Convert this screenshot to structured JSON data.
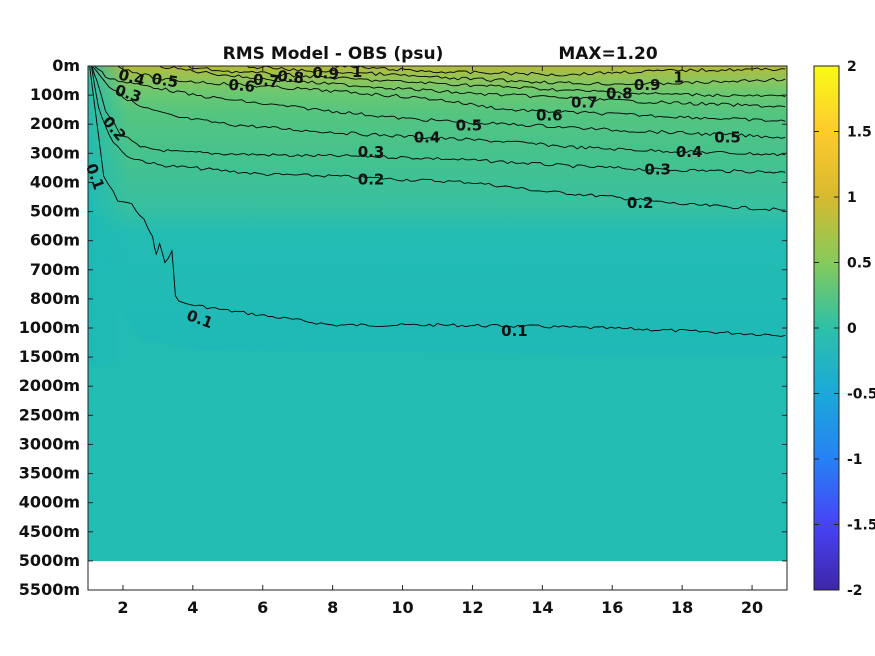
{
  "chart_data": {
    "type": "heatmap",
    "title": "RMS Model - OBS (psu)",
    "subtitle": "MAX=1.20",
    "x_ticks": [
      2,
      4,
      6,
      8,
      10,
      12,
      14,
      16,
      18,
      20
    ],
    "xlim": [
      1,
      21
    ],
    "y_ticks": [
      "0m",
      "100m",
      "200m",
      "300m",
      "400m",
      "500m",
      "600m",
      "700m",
      "800m",
      "1000m",
      "1500m",
      "2000m",
      "2500m",
      "3000m",
      "3500m",
      "4000m",
      "4500m",
      "5000m",
      "5500m"
    ],
    "y_axis_reversed": true,
    "data_extent_bottom": "5000m",
    "colorbar": {
      "range": [
        -2,
        2
      ],
      "ticks": [
        "2",
        "1.5",
        "1",
        "0.5",
        "0",
        "-0.5",
        "-1",
        "-1.5",
        "-2"
      ],
      "colormap": [
        "#3e26a8",
        "#4743f6",
        "#2781f4",
        "#1aa9da",
        "#2dc0a8",
        "#85ca5b",
        "#d7ba2e",
        "#feca2f",
        "#f9fb15"
      ]
    },
    "background_value_deep": 0.05,
    "contours": [
      {
        "level": 0.1,
        "label": "0.1",
        "x": [
          1.05,
          1.2,
          1.45,
          1.85,
          2.25,
          2.6,
          2.85,
          2.95,
          3.05,
          3.2,
          3.4,
          3.5,
          3.7,
          5,
          8,
          11,
          14,
          17,
          20,
          20.95
        ],
        "depth_index": [
          0.0,
          1.5,
          3.8,
          4.6,
          4.75,
          5.3,
          5.9,
          6.5,
          6.1,
          6.8,
          6.3,
          7.9,
          8.15,
          8.4,
          8.9,
          8.9,
          8.95,
          9.05,
          9.2,
          9.25
        ]
      },
      {
        "level": 0.2,
        "label": "0.2",
        "x": [
          1.1,
          1.3,
          1.6,
          2.1,
          3,
          4,
          6,
          8,
          10,
          12,
          14,
          16,
          18,
          20.95
        ],
        "depth_index": [
          0.0,
          1.4,
          2.4,
          3.1,
          3.4,
          3.5,
          3.72,
          3.78,
          3.9,
          4.0,
          4.3,
          4.5,
          4.75,
          4.95
        ]
      },
      {
        "level": 0.3,
        "label": "0.3",
        "x": [
          1.1,
          1.25,
          1.5,
          1.9,
          2.5,
          3.5,
          5,
          7,
          9,
          11,
          13,
          15,
          17,
          20.95
        ],
        "depth_index": [
          0.0,
          0.5,
          1.5,
          2.3,
          2.8,
          2.95,
          3.02,
          3.08,
          3.1,
          3.18,
          3.3,
          3.45,
          3.55,
          3.65
        ]
      },
      {
        "level": 0.4,
        "label": "0.4",
        "x": [
          1.15,
          1.35,
          1.6,
          2.0,
          2.5,
          3.5,
          5,
          7,
          9,
          11,
          13,
          15,
          17,
          20.95
        ],
        "depth_index": [
          0.0,
          0.3,
          0.7,
          1.05,
          1.4,
          1.75,
          2.0,
          2.2,
          2.35,
          2.48,
          2.6,
          2.8,
          2.9,
          3.05
        ]
      },
      {
        "level": 0.5,
        "label": "0.5",
        "x": [
          1.2,
          1.5,
          2.0,
          3.0,
          4,
          6,
          8,
          10,
          12,
          14,
          16,
          18,
          20.95
        ],
        "depth_index": [
          0.0,
          0.35,
          0.55,
          0.75,
          1.0,
          1.3,
          1.55,
          1.8,
          1.95,
          2.05,
          2.2,
          2.3,
          2.45
        ]
      },
      {
        "level": 0.6,
        "label": "0.6",
        "x": [
          1.8,
          3,
          5,
          7,
          9,
          11,
          13,
          15,
          17,
          19,
          20.95
        ],
        "depth_index": [
          0.0,
          0.45,
          0.62,
          0.78,
          0.95,
          1.15,
          1.5,
          1.6,
          1.7,
          1.8,
          1.9
        ]
      },
      {
        "level": 0.7,
        "label": "0.7",
        "x": [
          3.0,
          4.5,
          6,
          8,
          10,
          12,
          14,
          16,
          18,
          20.95
        ],
        "depth_index": [
          0.0,
          0.25,
          0.45,
          0.62,
          0.78,
          0.95,
          1.05,
          1.18,
          1.28,
          1.4
        ]
      },
      {
        "level": 0.8,
        "label": "0.8",
        "x": [
          3.5,
          5,
          7,
          9,
          11,
          13,
          15,
          17,
          19,
          20.95
        ],
        "depth_index": [
          0.0,
          0.18,
          0.33,
          0.48,
          0.6,
          0.72,
          0.85,
          0.95,
          1.0,
          1.05
        ]
      },
      {
        "level": 0.9,
        "label": "0.9",
        "x": [
          5.5,
          7,
          9,
          11,
          13,
          15,
          17,
          19,
          20.95
        ],
        "depth_index": [
          0.0,
          0.15,
          0.25,
          0.4,
          0.5,
          0.6,
          0.62,
          0.55,
          0.45
        ]
      },
      {
        "level": 1.0,
        "label": "1",
        "x": [
          8.0,
          9.5,
          11,
          13,
          14.5,
          16,
          18,
          20.95
        ],
        "depth_index": [
          0.0,
          0.1,
          0.2,
          0.25,
          0.3,
          0.22,
          0.15,
          0.1
        ]
      }
    ],
    "contour_labels": [
      {
        "text": "0.1",
        "x": 1.2,
        "depth_index": 3.8,
        "angle": 70
      },
      {
        "text": "0.1",
        "x": 4.2,
        "depth_index": 8.7,
        "angle": 20
      },
      {
        "text": "0.1",
        "x": 13.2,
        "depth_index": 9.1,
        "angle": 0
      },
      {
        "text": "0.2",
        "x": 1.75,
        "depth_index": 2.15,
        "angle": 50
      },
      {
        "text": "0.2",
        "x": 9.1,
        "depth_index": 3.9,
        "angle": 0
      },
      {
        "text": "0.2",
        "x": 16.8,
        "depth_index": 4.7,
        "angle": 0
      },
      {
        "text": "0.3",
        "x": 2.15,
        "depth_index": 0.95,
        "angle": 18
      },
      {
        "text": "0.3",
        "x": 9.1,
        "depth_index": 2.95,
        "angle": 0
      },
      {
        "text": "0.3",
        "x": 17.3,
        "depth_index": 3.55,
        "angle": 0
      },
      {
        "text": "0.4",
        "x": 2.25,
        "depth_index": 0.4,
        "angle": 15
      },
      {
        "text": "0.4",
        "x": 10.7,
        "depth_index": 2.45,
        "angle": 0
      },
      {
        "text": "0.4",
        "x": 18.2,
        "depth_index": 2.95,
        "angle": 0
      },
      {
        "text": "0.5",
        "x": 3.2,
        "depth_index": 0.5,
        "angle": 8
      },
      {
        "text": "0.5",
        "x": 11.9,
        "depth_index": 2.05,
        "angle": 0
      },
      {
        "text": "0.5",
        "x": 19.3,
        "depth_index": 2.45,
        "angle": 0
      },
      {
        "text": "0.6",
        "x": 5.4,
        "depth_index": 0.68,
        "angle": 5
      },
      {
        "text": "0.6",
        "x": 14.2,
        "depth_index": 1.7,
        "angle": 0
      },
      {
        "text": "0.7",
        "x": 6.1,
        "depth_index": 0.5,
        "angle": 5
      },
      {
        "text": "0.7",
        "x": 15.2,
        "depth_index": 1.25,
        "angle": 0
      },
      {
        "text": "0.8",
        "x": 6.8,
        "depth_index": 0.38,
        "angle": 5
      },
      {
        "text": "0.8",
        "x": 16.2,
        "depth_index": 0.95,
        "angle": 0
      },
      {
        "text": "0.9",
        "x": 7.8,
        "depth_index": 0.25,
        "angle": 3
      },
      {
        "text": "0.9",
        "x": 17.0,
        "depth_index": 0.65,
        "angle": 0
      },
      {
        "text": "1",
        "x": 8.7,
        "depth_index": 0.2,
        "angle": 0
      },
      {
        "text": "1",
        "x": 17.9,
        "depth_index": 0.4,
        "angle": 0
      }
    ]
  }
}
